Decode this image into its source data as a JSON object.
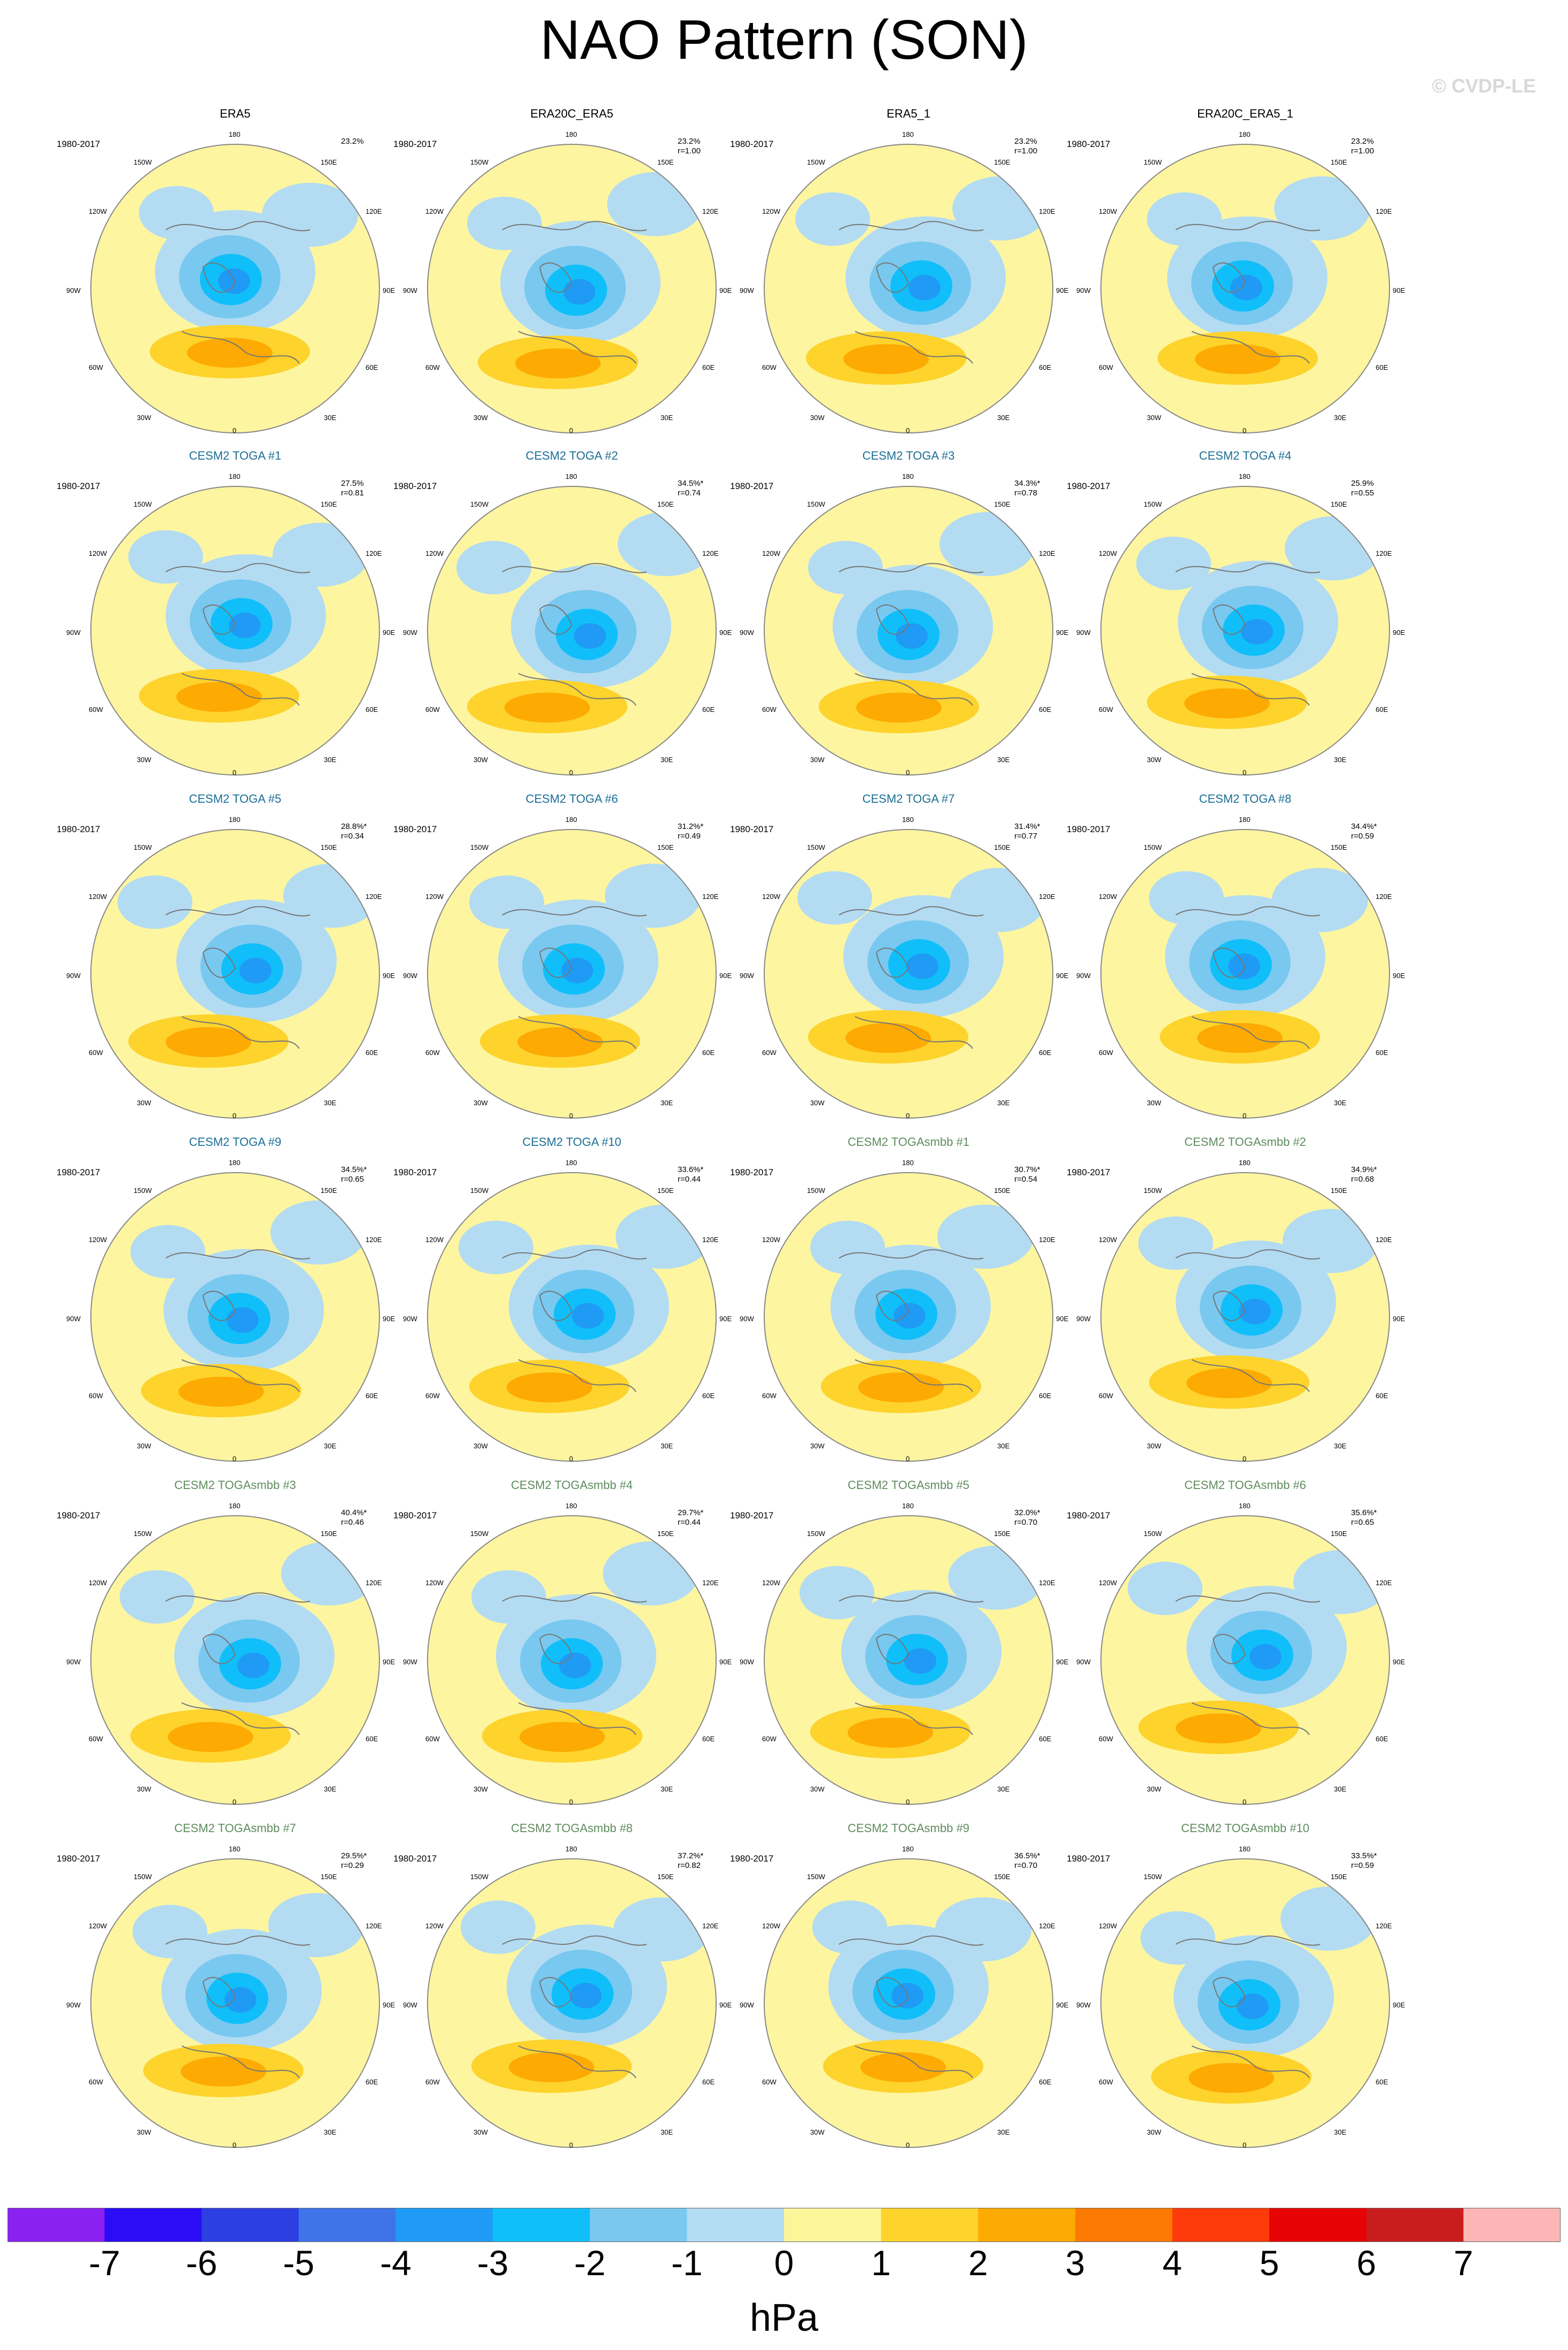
{
  "title": "NAO Pattern (SON)",
  "watermark": "© CVDP-LE",
  "colors": {
    "obs_title": "#000000",
    "toga_title": "#1a6e96",
    "togasmbb_title": "#5e8c5e",
    "ocean_pos": "#fdf5a0",
    "ocean_neg": "#b8dcf2",
    "coast": "#777777"
  },
  "panels": [
    {
      "title": "ERA5",
      "years": "1980-2017",
      "stat1": "23.2%",
      "stat2": "",
      "group": "obs"
    },
    {
      "title": "ERA20C_ERA5",
      "years": "1980-2017",
      "stat1": "23.2%",
      "stat2": "r=1.00",
      "group": "obs"
    },
    {
      "title": "ERA5_1",
      "years": "1980-2017",
      "stat1": "23.2%",
      "stat2": "r=1.00",
      "group": "obs"
    },
    {
      "title": "ERA20C_ERA5_1",
      "years": "1980-2017",
      "stat1": "23.2%",
      "stat2": "r=1.00",
      "group": "obs"
    },
    {
      "title": "CESM2 TOGA #1",
      "years": "1980-2017",
      "stat1": "27.5%",
      "stat2": "r=0.81",
      "group": "toga"
    },
    {
      "title": "CESM2 TOGA #2",
      "years": "1980-2017",
      "stat1": "34.5%*",
      "stat2": "r=0.74",
      "group": "toga"
    },
    {
      "title": "CESM2 TOGA #3",
      "years": "1980-2017",
      "stat1": "34.3%*",
      "stat2": "r=0.78",
      "group": "toga"
    },
    {
      "title": "CESM2 TOGA #4",
      "years": "1980-2017",
      "stat1": "25.9%",
      "stat2": "r=0.55",
      "group": "toga"
    },
    {
      "title": "CESM2 TOGA #5",
      "years": "1980-2017",
      "stat1": "28.8%*",
      "stat2": "r=0.34",
      "group": "toga"
    },
    {
      "title": "CESM2 TOGA #6",
      "years": "1980-2017",
      "stat1": "31.2%*",
      "stat2": "r=0.49",
      "group": "toga"
    },
    {
      "title": "CESM2 TOGA #7",
      "years": "1980-2017",
      "stat1": "31.4%*",
      "stat2": "r=0.77",
      "group": "toga"
    },
    {
      "title": "CESM2 TOGA #8",
      "years": "1980-2017",
      "stat1": "34.4%*",
      "stat2": "r=0.59",
      "group": "toga"
    },
    {
      "title": "CESM2 TOGA #9",
      "years": "1980-2017",
      "stat1": "34.5%*",
      "stat2": "r=0.65",
      "group": "toga"
    },
    {
      "title": "CESM2 TOGA #10",
      "years": "1980-2017",
      "stat1": "33.6%*",
      "stat2": "r=0.44",
      "group": "toga"
    },
    {
      "title": "CESM2 TOGAsmbb #1",
      "years": "1980-2017",
      "stat1": "30.7%*",
      "stat2": "r=0.54",
      "group": "togasmbb"
    },
    {
      "title": "CESM2 TOGAsmbb #2",
      "years": "1980-2017",
      "stat1": "34.9%*",
      "stat2": "r=0.68",
      "group": "togasmbb"
    },
    {
      "title": "CESM2 TOGAsmbb #3",
      "years": "1980-2017",
      "stat1": "40.4%*",
      "stat2": "r=0.46",
      "group": "togasmbb"
    },
    {
      "title": "CESM2 TOGAsmbb #4",
      "years": "1980-2017",
      "stat1": "29.7%*",
      "stat2": "r=0.44",
      "group": "togasmbb"
    },
    {
      "title": "CESM2 TOGAsmbb #5",
      "years": "1980-2017",
      "stat1": "32.0%*",
      "stat2": "r=0.70",
      "group": "togasmbb"
    },
    {
      "title": "CESM2 TOGAsmbb #6",
      "years": "1980-2017",
      "stat1": "35.6%*",
      "stat2": "r=0.65",
      "group": "togasmbb"
    },
    {
      "title": "CESM2 TOGAsmbb #7",
      "years": "1980-2017",
      "stat1": "29.5%*",
      "stat2": "r=0.29",
      "group": "togasmbb"
    },
    {
      "title": "CESM2 TOGAsmbb #8",
      "years": "1980-2017",
      "stat1": "37.2%*",
      "stat2": "r=0.82",
      "group": "togasmbb"
    },
    {
      "title": "CESM2 TOGAsmbb #9",
      "years": "1980-2017",
      "stat1": "36.5%*",
      "stat2": "r=0.70",
      "group": "togasmbb"
    },
    {
      "title": "CESM2 TOGAsmbb #10",
      "years": "1980-2017",
      "stat1": "33.5%*",
      "stat2": "r=0.59",
      "group": "togasmbb"
    }
  ],
  "map_labels": {
    "n": "180",
    "s": "0",
    "e": "90E",
    "w": "90W",
    "nw1": "150W",
    "nw2": "120W",
    "sw1": "60W",
    "sw2": "30W",
    "ne1": "150E",
    "ne2": "120E",
    "se1": "60E",
    "se2": "30E"
  },
  "colorbar": {
    "colors": [
      "#8a21f0",
      "#2a0cf6",
      "#2c3fe0",
      "#3e74e8",
      "#1f9bf5",
      "#10bff9",
      "#79c8f0",
      "#b3dcf2",
      "#fdf59a",
      "#fdd32c",
      "#fdaa02",
      "#fd7a02",
      "#fd3a0a",
      "#e70303",
      "#c91d1d",
      "#fcb6b6"
    ],
    "labels": [
      "-7",
      "-6",
      "-5",
      "-4",
      "-3",
      "-2",
      "-1",
      "0",
      "1",
      "2",
      "3",
      "4",
      "5",
      "6",
      "7"
    ],
    "unit": "hPa"
  },
  "chart_data": {
    "type": "heatmap",
    "title": "NAO Pattern (SON)",
    "description_units": "hPa",
    "color_levels": [
      -7,
      -6,
      -5,
      -4,
      -3,
      -2,
      -1,
      0,
      1,
      2,
      3,
      4,
      5,
      6,
      7
    ],
    "panels": [
      {
        "name": "ERA5",
        "variance_explained": "23.2%"
      },
      {
        "name": "ERA20C_ERA5",
        "variance_explained": "23.2%",
        "pattern_r": 1.0
      },
      {
        "name": "ERA5_1",
        "variance_explained": "23.2%",
        "pattern_r": 1.0
      },
      {
        "name": "ERA20C_ERA5_1",
        "variance_explained": "23.2%",
        "pattern_r": 1.0
      },
      {
        "name": "CESM2 TOGA #1",
        "variance_explained": "27.5%",
        "pattern_r": 0.81
      },
      {
        "name": "CESM2 TOGA #2",
        "variance_explained": "34.5%*",
        "pattern_r": 0.74
      },
      {
        "name": "CESM2 TOGA #3",
        "variance_explained": "34.3%*",
        "pattern_r": 0.78
      },
      {
        "name": "CESM2 TOGA #4",
        "variance_explained": "25.9%",
        "pattern_r": 0.55
      },
      {
        "name": "CESM2 TOGA #5",
        "variance_explained": "28.8%*",
        "pattern_r": 0.34
      },
      {
        "name": "CESM2 TOGA #6",
        "variance_explained": "31.2%*",
        "pattern_r": 0.49
      },
      {
        "name": "CESM2 TOGA #7",
        "variance_explained": "31.4%*",
        "pattern_r": 0.77
      },
      {
        "name": "CESM2 TOGA #8",
        "variance_explained": "34.4%*",
        "pattern_r": 0.59
      },
      {
        "name": "CESM2 TOGA #9",
        "variance_explained": "34.5%*",
        "pattern_r": 0.65
      },
      {
        "name": "CESM2 TOGA #10",
        "variance_explained": "33.6%*",
        "pattern_r": 0.44
      },
      {
        "name": "CESM2 TOGAsmbb #1",
        "variance_explained": "30.7%*",
        "pattern_r": 0.54
      },
      {
        "name": "CESM2 TOGAsmbb #2",
        "variance_explained": "34.9%*",
        "pattern_r": 0.68
      },
      {
        "name": "CESM2 TOGAsmbb #3",
        "variance_explained": "40.4%*",
        "pattern_r": 0.46
      },
      {
        "name": "CESM2 TOGAsmbb #4",
        "variance_explained": "29.7%*",
        "pattern_r": 0.44
      },
      {
        "name": "CESM2 TOGAsmbb #5",
        "variance_explained": "32.0%*",
        "pattern_r": 0.7
      },
      {
        "name": "CESM2 TOGAsmbb #6",
        "variance_explained": "35.6%*",
        "pattern_r": 0.65
      },
      {
        "name": "CESM2 TOGAsmbb #7",
        "variance_explained": "29.5%*",
        "pattern_r": 0.29
      },
      {
        "name": "CESM2 TOGAsmbb #8",
        "variance_explained": "37.2%*",
        "pattern_r": 0.82
      },
      {
        "name": "CESM2 TOGAsmbb #9",
        "variance_explained": "36.5%*",
        "pattern_r": 0.7
      },
      {
        "name": "CESM2 TOGAsmbb #10",
        "variance_explained": "33.5%*",
        "pattern_r": 0.59
      }
    ]
  }
}
